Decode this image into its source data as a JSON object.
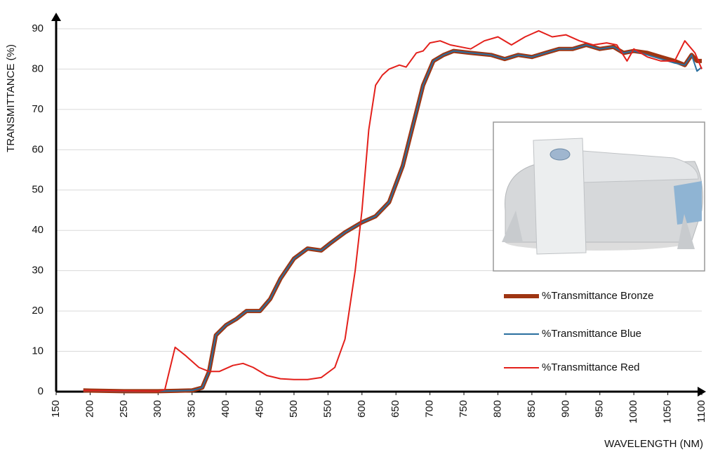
{
  "chart_data": {
    "type": "line",
    "x_label": "WAVELENGTH (NM)",
    "y_label": "TRANSMITTANCE (%)",
    "xlim": [
      150,
      1100
    ],
    "ylim": [
      0,
      94
    ],
    "xticks": [
      150,
      200,
      250,
      300,
      350,
      400,
      450,
      500,
      550,
      600,
      650,
      700,
      750,
      800,
      850,
      900,
      950,
      1000,
      1050,
      1100
    ],
    "yticks": [
      0,
      10,
      20,
      30,
      40,
      50,
      60,
      70,
      80,
      90
    ],
    "grid": true,
    "legend": "lower right",
    "series": [
      {
        "name": "%Transmittance Bronze",
        "color": "#9e3512",
        "width": 6,
        "x": [
          190,
          250,
          300,
          350,
          365,
          375,
          385,
          400,
          415,
          430,
          450,
          465,
          480,
          500,
          520,
          540,
          555,
          575,
          600,
          620,
          640,
          660,
          675,
          690,
          705,
          720,
          735,
          760,
          790,
          810,
          830,
          850,
          870,
          890,
          910,
          930,
          950,
          970,
          985,
          1000,
          1020,
          1040,
          1060,
          1075,
          1085,
          1093,
          1100
        ],
        "values": [
          0.3,
          0.1,
          0.1,
          0.3,
          1,
          5,
          14,
          16.5,
          18,
          20,
          20,
          23,
          28,
          33,
          35.5,
          35,
          37,
          39.5,
          42,
          43.5,
          47,
          56,
          66,
          76,
          82,
          83.5,
          84.5,
          84,
          83.5,
          82.5,
          83.5,
          83,
          84,
          85,
          85,
          86,
          85,
          85.5,
          84,
          84.5,
          84,
          83,
          82,
          81,
          83.5,
          82,
          82
        ]
      },
      {
        "name": "%Transmittance Blue",
        "color": "#2a6f9f",
        "width": 2,
        "x": [
          190,
          250,
          300,
          350,
          365,
          375,
          385,
          400,
          415,
          430,
          450,
          465,
          480,
          500,
          520,
          540,
          555,
          575,
          600,
          620,
          640,
          660,
          675,
          690,
          705,
          720,
          735,
          760,
          790,
          810,
          830,
          850,
          870,
          890,
          910,
          930,
          950,
          970,
          985,
          1000,
          1020,
          1040,
          1060,
          1075,
          1085,
          1093,
          1100
        ],
        "values": [
          0.3,
          0.1,
          0.1,
          0.3,
          1,
          5,
          14,
          16.5,
          18,
          20,
          20,
          23,
          28,
          33,
          35.5,
          35,
          37,
          39.5,
          42,
          43.5,
          47,
          56,
          66,
          76,
          82,
          83.5,
          84.5,
          84,
          83.5,
          82.5,
          83.5,
          83,
          84,
          85,
          85,
          86,
          85,
          85.5,
          84,
          84.5,
          83.5,
          82.5,
          81.5,
          81,
          83.5,
          79.5,
          80.5
        ]
      },
      {
        "name": "%Transmittance Red",
        "color": "#e3201b",
        "width": 2,
        "x": [
          190,
          300,
          310,
          325,
          340,
          360,
          375,
          390,
          410,
          425,
          440,
          460,
          480,
          500,
          520,
          540,
          560,
          575,
          590,
          600,
          610,
          620,
          630,
          640,
          655,
          665,
          680,
          690,
          700,
          715,
          730,
          745,
          760,
          780,
          800,
          820,
          840,
          860,
          880,
          900,
          920,
          940,
          960,
          975,
          990,
          1000,
          1020,
          1040,
          1060,
          1075,
          1090,
          1100
        ],
        "values": [
          0.3,
          0.1,
          0.5,
          11,
          9,
          6,
          5,
          5,
          6.5,
          7,
          6,
          4,
          3.2,
          3,
          3,
          3.5,
          6,
          13,
          30,
          45,
          65,
          76,
          78.5,
          80,
          81,
          80.5,
          84,
          84.5,
          86.5,
          87,
          86,
          85.5,
          85,
          87,
          88,
          86,
          88,
          89.5,
          88,
          88.5,
          87,
          86,
          86.5,
          86,
          82,
          85,
          83,
          82,
          82,
          87,
          84,
          80
        ]
      }
    ]
  }
}
